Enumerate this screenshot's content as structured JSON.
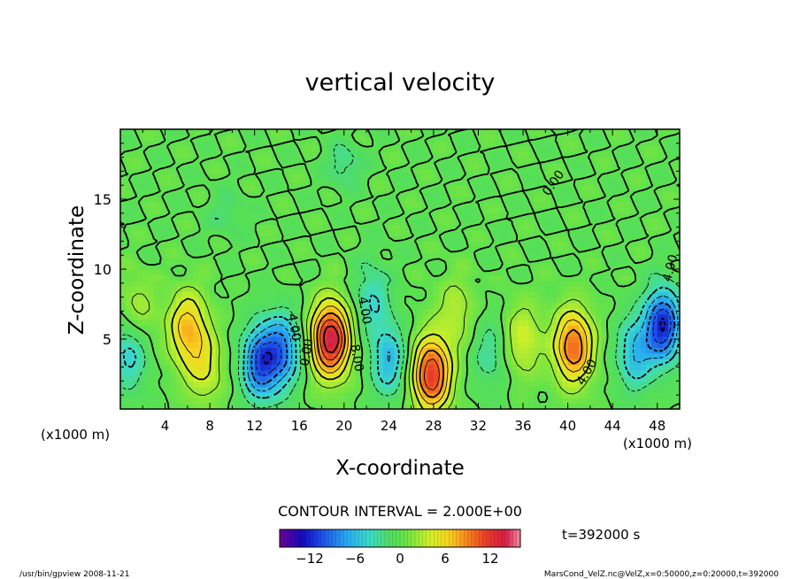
{
  "chart_data": {
    "type": "heatmap",
    "title": "vertical velocity",
    "xlabel": "X-coordinate",
    "ylabel": "Z-coordinate",
    "x_unit_left": "(x1000 m)",
    "x_unit_right": "(x1000 m)",
    "xlim": [
      0,
      50
    ],
    "ylim": [
      0,
      20
    ],
    "x_ticks": [
      4,
      8,
      12,
      16,
      20,
      24,
      28,
      32,
      36,
      40,
      44,
      48
    ],
    "y_ticks": [
      5,
      10,
      15
    ],
    "contour_interval_label": "CONTOUR INTERVAL = 2.000E+00",
    "time_label": "t=392000 s",
    "colorbar": {
      "ticks": [
        -12,
        -6,
        0,
        6,
        12
      ],
      "range": [
        -16,
        16
      ]
    },
    "contour_labels": [
      {
        "text": "4.00",
        "x": 21.5,
        "z": 7.0,
        "rotate": 80
      },
      {
        "text": "8.00",
        "x": 20.8,
        "z": 3.6,
        "rotate": 80
      },
      {
        "text": "0.00",
        "x": 17.0,
        "z": 4.0,
        "rotate": -80
      },
      {
        "text": "4.00",
        "x": 15.2,
        "z": 5.8,
        "rotate": 80
      },
      {
        "text": "4.00",
        "x": 42.0,
        "z": 2.5,
        "rotate": -60
      },
      {
        "text": "0.00",
        "x": 39.0,
        "z": 16.0,
        "rotate": -55
      },
      {
        "text": "4.00",
        "x": 49.5,
        "z": 10.0,
        "rotate": -75
      }
    ],
    "features": [
      {
        "kind": "updraft",
        "x": 18.8,
        "z": 5.0,
        "peak": 14
      },
      {
        "kind": "updraft",
        "x": 40.5,
        "z": 4.5,
        "peak": 10
      },
      {
        "kind": "updraft",
        "x": 27.8,
        "z": 2.5,
        "peak": 12
      },
      {
        "kind": "updraft",
        "x": 6.0,
        "z": 5.8,
        "peak": 7
      },
      {
        "kind": "updraft",
        "x": 7.5,
        "z": 3.0,
        "peak": 4
      },
      {
        "kind": "updraft",
        "x": 36.0,
        "z": 5.0,
        "peak": 4
      },
      {
        "kind": "updraft",
        "x": 30.0,
        "z": 7.0,
        "peak": 3
      },
      {
        "kind": "updraft",
        "x": 1.5,
        "z": 7.0,
        "peak": 3
      },
      {
        "kind": "downdraft",
        "x": 12.5,
        "z": 3.3,
        "peak": -10
      },
      {
        "kind": "downdraft",
        "x": 14.5,
        "z": 4.2,
        "peak": -8
      },
      {
        "kind": "downdraft",
        "x": 48.5,
        "z": 6.0,
        "peak": -12
      },
      {
        "kind": "downdraft",
        "x": 46.0,
        "z": 4.0,
        "peak": -6
      },
      {
        "kind": "downdraft",
        "x": 24.0,
        "z": 3.5,
        "peak": -6
      },
      {
        "kind": "downdraft",
        "x": 0.8,
        "z": 4.0,
        "peak": -5
      },
      {
        "kind": "downdraft",
        "x": 22.5,
        "z": 8.0,
        "peak": -4
      },
      {
        "kind": "downdraft",
        "x": 33.0,
        "z": 4.0,
        "peak": -3
      },
      {
        "kind": "downdraft",
        "x": 20.0,
        "z": 17.5,
        "peak": -3
      },
      {
        "kind": "downdraft",
        "x": 9.5,
        "z": 14.0,
        "peak": -2
      }
    ]
  },
  "footer": {
    "left": "/usr/bin/gpview   2008-11-21",
    "right": "MarsCond_VelZ.nc@VelZ,x=0:50000,z=0:20000,t=392000"
  },
  "colors": {
    "frame": "#000000",
    "background": "#ffffff"
  }
}
